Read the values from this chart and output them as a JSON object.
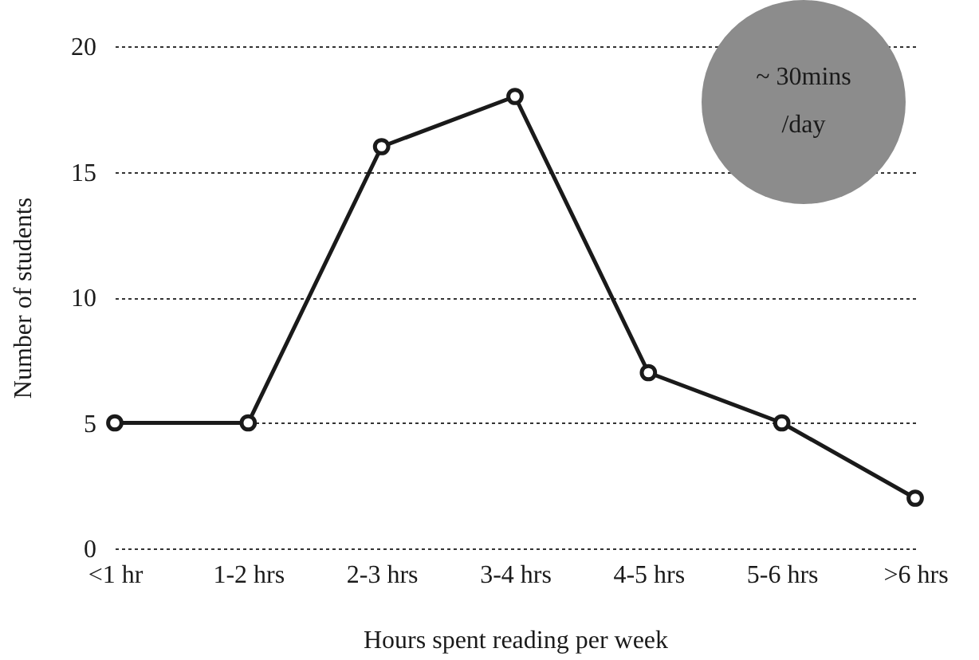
{
  "chart_data": {
    "type": "line",
    "xlabel": "Hours spent reading per week",
    "ylabel": "Number of students",
    "categories": [
      "<1 hr",
      "1-2 hrs",
      "2-3 hrs",
      "3-4 hrs",
      "4-5 hrs",
      "5-6 hrs",
      ">6 hrs"
    ],
    "series": [
      {
        "color": "#1a1a1a",
        "values": [
          5,
          5,
          16,
          18,
          7,
          5,
          2
        ]
      }
    ],
    "ylim": [
      0,
      20
    ],
    "yticks": [
      0,
      5,
      10,
      15,
      20
    ],
    "grid": "y",
    "marker": "circle",
    "line_style": "solid",
    "annotations": [
      "~ 30mins /day"
    ]
  }
}
